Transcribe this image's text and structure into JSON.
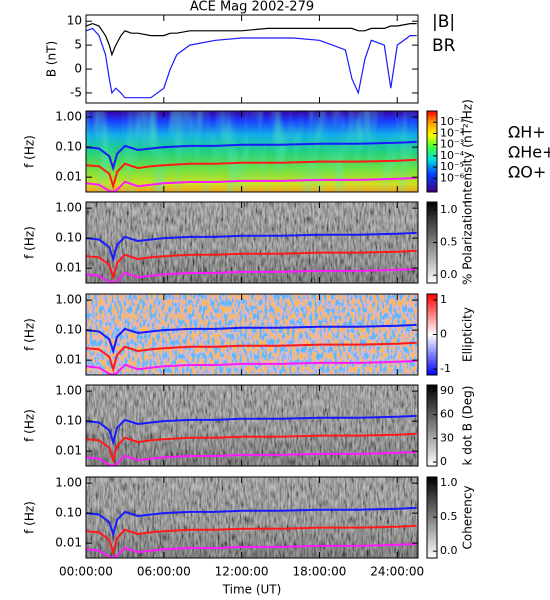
{
  "chart_data": [
    {
      "type": "line",
      "title": "ACE Mag 2002-279",
      "ylabel": "B (nT)",
      "ylim": [
        -7.1,
        11.3
      ],
      "yticks": [
        10,
        5,
        0,
        -5
      ],
      "x": [
        0,
        0.5,
        1,
        1.5,
        1.8,
        2,
        2.3,
        2.7,
        3,
        3.5,
        4,
        5,
        6,
        6.5,
        7,
        8,
        10,
        12,
        14,
        16,
        18,
        19,
        20,
        20.5,
        21,
        21.5,
        22,
        23,
        23.5,
        24,
        25,
        25.5
      ],
      "series": [
        {
          "name": "|B|",
          "color": "#000000",
          "values": [
            9,
            9.5,
            9,
            7,
            5,
            3,
            5,
            7,
            8,
            7.5,
            7.5,
            7,
            7,
            7.5,
            7.5,
            8,
            8,
            8,
            8.5,
            8.5,
            8.5,
            8.5,
            8.5,
            8.5,
            8,
            8,
            8.5,
            8.5,
            9,
            9,
            9.5,
            9.5
          ]
        },
        {
          "name": "BR",
          "color": "#1a1aff",
          "values": [
            8,
            8.5,
            7,
            3,
            -2,
            -5,
            -4,
            -5,
            -6,
            -6,
            -6,
            -6,
            -4,
            0,
            3,
            5,
            6,
            6.5,
            6.5,
            6.5,
            6,
            5,
            4,
            -2,
            -5,
            2,
            6,
            5,
            -4,
            5,
            7,
            7
          ]
        }
      ]
    },
    {
      "type": "spectrogram",
      "ylabel": "f (Hz)",
      "ylog": true,
      "ylim": [
        0.0032,
        1.6
      ],
      "yticks": [
        {
          "value": 1,
          "label": "1.00"
        },
        {
          "value": 0.1,
          "label": "0.10"
        },
        {
          "value": 0.01,
          "label": "0.01"
        }
      ],
      "colormap": "rainbow",
      "colorbar": {
        "label": "Intensity (nT²/Hz)",
        "log": true,
        "lim": [
          6e-08,
          1
        ],
        "ticks": [
          {
            "value": 0.1,
            "label": "10⁻¹"
          },
          {
            "value": 0.01,
            "label": "10⁻²"
          },
          {
            "value": 0.001,
            "label": "10⁻³"
          },
          {
            "value": 0.0001,
            "label": "10⁻⁴"
          },
          {
            "value": 1e-05,
            "label": "10⁻⁵"
          },
          {
            "value": 1e-06,
            "label": "10⁻⁶"
          }
        ]
      },
      "x": [
        0,
        1,
        1.8,
        2.1,
        2.4,
        3,
        4,
        5,
        6,
        8,
        10,
        12,
        15,
        18,
        21,
        24,
        25.5
      ],
      "series": [
        {
          "name": "ΩH+",
          "color": "#1a1aff",
          "values": [
            0.1,
            0.09,
            0.05,
            0.02,
            0.06,
            0.11,
            0.08,
            0.09,
            0.1,
            0.11,
            0.11,
            0.12,
            0.12,
            0.13,
            0.13,
            0.14,
            0.15
          ]
        },
        {
          "name": "ΩHe+",
          "color": "#ff1a1a",
          "values": [
            0.025,
            0.023,
            0.013,
            0.005,
            0.015,
            0.028,
            0.02,
            0.023,
            0.025,
            0.028,
            0.028,
            0.03,
            0.03,
            0.033,
            0.033,
            0.035,
            0.038
          ]
        },
        {
          "name": "ΩO+",
          "color": "#ff1aff",
          "values": [
            0.0063,
            0.0056,
            0.0035,
            0.0033,
            0.0038,
            0.007,
            0.005,
            0.0056,
            0.0063,
            0.0069,
            0.0069,
            0.0075,
            0.0075,
            0.0081,
            0.0081,
            0.0088,
            0.0094
          ]
        }
      ]
    },
    {
      "type": "spectrogram",
      "ylabel": "f (Hz)",
      "ylog": true,
      "ylim": [
        0.0032,
        1.6
      ],
      "yticks": [
        {
          "value": 1,
          "label": "1.00"
        },
        {
          "value": 0.1,
          "label": "0.10"
        },
        {
          "value": 0.01,
          "label": "0.01"
        }
      ],
      "colormap": "gray",
      "colorbar": {
        "label": "% Polarization",
        "lim": [
          -0.12,
          1.12
        ],
        "ticks": [
          {
            "value": 1,
            "label": "1.0"
          },
          {
            "value": 0.5,
            "label": "0.5"
          },
          {
            "value": 0,
            "label": "0.0"
          }
        ]
      },
      "x": [
        0,
        1,
        1.8,
        2.1,
        2.4,
        3,
        4,
        5,
        6,
        8,
        10,
        12,
        15,
        18,
        21,
        24,
        25.5
      ],
      "series": [
        {
          "color": "#1a1aff",
          "values": [
            0.1,
            0.09,
            0.05,
            0.02,
            0.06,
            0.11,
            0.08,
            0.09,
            0.1,
            0.11,
            0.11,
            0.12,
            0.12,
            0.13,
            0.13,
            0.14,
            0.15
          ]
        },
        {
          "color": "#ff1a1a",
          "values": [
            0.025,
            0.023,
            0.013,
            0.005,
            0.015,
            0.028,
            0.02,
            0.023,
            0.025,
            0.028,
            0.028,
            0.03,
            0.03,
            0.033,
            0.033,
            0.035,
            0.038
          ]
        },
        {
          "color": "#ff1aff",
          "values": [
            0.0063,
            0.0056,
            0.0035,
            0.0033,
            0.0038,
            0.007,
            0.005,
            0.0056,
            0.0063,
            0.0069,
            0.0069,
            0.0075,
            0.0075,
            0.0081,
            0.0081,
            0.0088,
            0.0094
          ]
        }
      ]
    },
    {
      "type": "spectrogram",
      "ylabel": "f (Hz)",
      "ylog": true,
      "ylim": [
        0.0032,
        1.6
      ],
      "yticks": [
        {
          "value": 1,
          "label": "1.00"
        },
        {
          "value": 0.1,
          "label": "0.10"
        },
        {
          "value": 0.01,
          "label": "0.01"
        }
      ],
      "colormap": "bwr",
      "colorbar": {
        "label": "Ellipticity",
        "lim": [
          -1.17,
          1.17
        ],
        "ticks": [
          1,
          0,
          -1
        ]
      },
      "x": [
        0,
        1,
        1.8,
        2.1,
        2.4,
        3,
        4,
        5,
        6,
        8,
        10,
        12,
        15,
        18,
        21,
        24,
        25.5
      ],
      "series": [
        {
          "color": "#1a1aff",
          "values": [
            0.1,
            0.09,
            0.05,
            0.02,
            0.06,
            0.11,
            0.08,
            0.09,
            0.1,
            0.11,
            0.11,
            0.12,
            0.12,
            0.13,
            0.13,
            0.14,
            0.15
          ]
        },
        {
          "color": "#ff1a1a",
          "values": [
            0.025,
            0.023,
            0.013,
            0.005,
            0.015,
            0.028,
            0.02,
            0.023,
            0.025,
            0.028,
            0.028,
            0.03,
            0.03,
            0.033,
            0.033,
            0.035,
            0.038
          ]
        },
        {
          "color": "#ff1aff",
          "values": [
            0.0063,
            0.0056,
            0.0035,
            0.0033,
            0.0038,
            0.007,
            0.005,
            0.0056,
            0.0063,
            0.0069,
            0.0069,
            0.0075,
            0.0075,
            0.0081,
            0.0081,
            0.0088,
            0.0094
          ]
        }
      ]
    },
    {
      "type": "spectrogram",
      "ylabel": "f (Hz)",
      "ylog": true,
      "ylim": [
        0.0032,
        1.6
      ],
      "yticks": [
        {
          "value": 1,
          "label": "1.00"
        },
        {
          "value": 0.1,
          "label": "0.10"
        },
        {
          "value": 0.01,
          "label": "0.01"
        }
      ],
      "colormap": "gray",
      "colorbar": {
        "label": "k dot B (Deg)",
        "lim": [
          -5,
          97.6
        ],
        "ticks": [
          90,
          60,
          30,
          0
        ]
      },
      "x": [
        0,
        1,
        1.8,
        2.1,
        2.4,
        3,
        4,
        5,
        6,
        8,
        10,
        12,
        15,
        18,
        21,
        24,
        25.5
      ],
      "series": [
        {
          "color": "#1a1aff",
          "values": [
            0.1,
            0.09,
            0.05,
            0.02,
            0.06,
            0.11,
            0.08,
            0.09,
            0.1,
            0.11,
            0.11,
            0.12,
            0.12,
            0.13,
            0.13,
            0.14,
            0.15
          ]
        },
        {
          "color": "#ff1a1a",
          "values": [
            0.025,
            0.023,
            0.013,
            0.005,
            0.015,
            0.028,
            0.02,
            0.023,
            0.025,
            0.028,
            0.028,
            0.03,
            0.03,
            0.033,
            0.033,
            0.035,
            0.038
          ]
        },
        {
          "color": "#ff1aff",
          "values": [
            0.0063,
            0.0056,
            0.0035,
            0.0033,
            0.0038,
            0.007,
            0.005,
            0.0056,
            0.0063,
            0.0069,
            0.0069,
            0.0075,
            0.0075,
            0.0081,
            0.0081,
            0.0088,
            0.0094
          ]
        }
      ]
    },
    {
      "type": "spectrogram",
      "ylabel": "f (Hz)",
      "ylog": true,
      "ylim": [
        0.0032,
        1.6
      ],
      "yticks": [
        {
          "value": 1,
          "label": "1.00"
        },
        {
          "value": 0.1,
          "label": "0.10"
        },
        {
          "value": 0.01,
          "label": "0.01"
        }
      ],
      "colormap": "gray",
      "colorbar": {
        "label": "Coherency",
        "lim": [
          -0.1,
          1.09
        ],
        "ticks": [
          {
            "value": 1,
            "label": "1.0"
          },
          {
            "value": 0.5,
            "label": "0.5"
          },
          {
            "value": 0,
            "label": "0.0"
          }
        ]
      },
      "xlabel": "Time (UT)",
      "xlim": [
        0,
        25.6
      ],
      "xticks": [
        {
          "value": 0,
          "label": "00:00:00"
        },
        {
          "value": 6,
          "label": "06:00:00"
        },
        {
          "value": 12,
          "label": "12:00:00"
        },
        {
          "value": 18,
          "label": "18:00:00"
        },
        {
          "value": 24,
          "label": "24:00:00"
        }
      ],
      "x": [
        0,
        1,
        1.8,
        2.1,
        2.4,
        3,
        4,
        5,
        6,
        8,
        10,
        12,
        15,
        18,
        21,
        24,
        25.5
      ],
      "series": [
        {
          "color": "#1a1aff",
          "values": [
            0.1,
            0.09,
            0.05,
            0.02,
            0.06,
            0.11,
            0.08,
            0.09,
            0.1,
            0.11,
            0.11,
            0.12,
            0.12,
            0.13,
            0.13,
            0.14,
            0.15
          ]
        },
        {
          "color": "#ff1a1a",
          "values": [
            0.025,
            0.023,
            0.013,
            0.005,
            0.015,
            0.028,
            0.02,
            0.023,
            0.025,
            0.028,
            0.028,
            0.03,
            0.03,
            0.033,
            0.033,
            0.035,
            0.038
          ]
        },
        {
          "color": "#ff1aff",
          "values": [
            0.0063,
            0.0056,
            0.0035,
            0.0033,
            0.0038,
            0.007,
            0.005,
            0.0056,
            0.0063,
            0.0069,
            0.0069,
            0.0075,
            0.0075,
            0.0081,
            0.0081,
            0.0088,
            0.0094
          ]
        }
      ]
    }
  ]
}
